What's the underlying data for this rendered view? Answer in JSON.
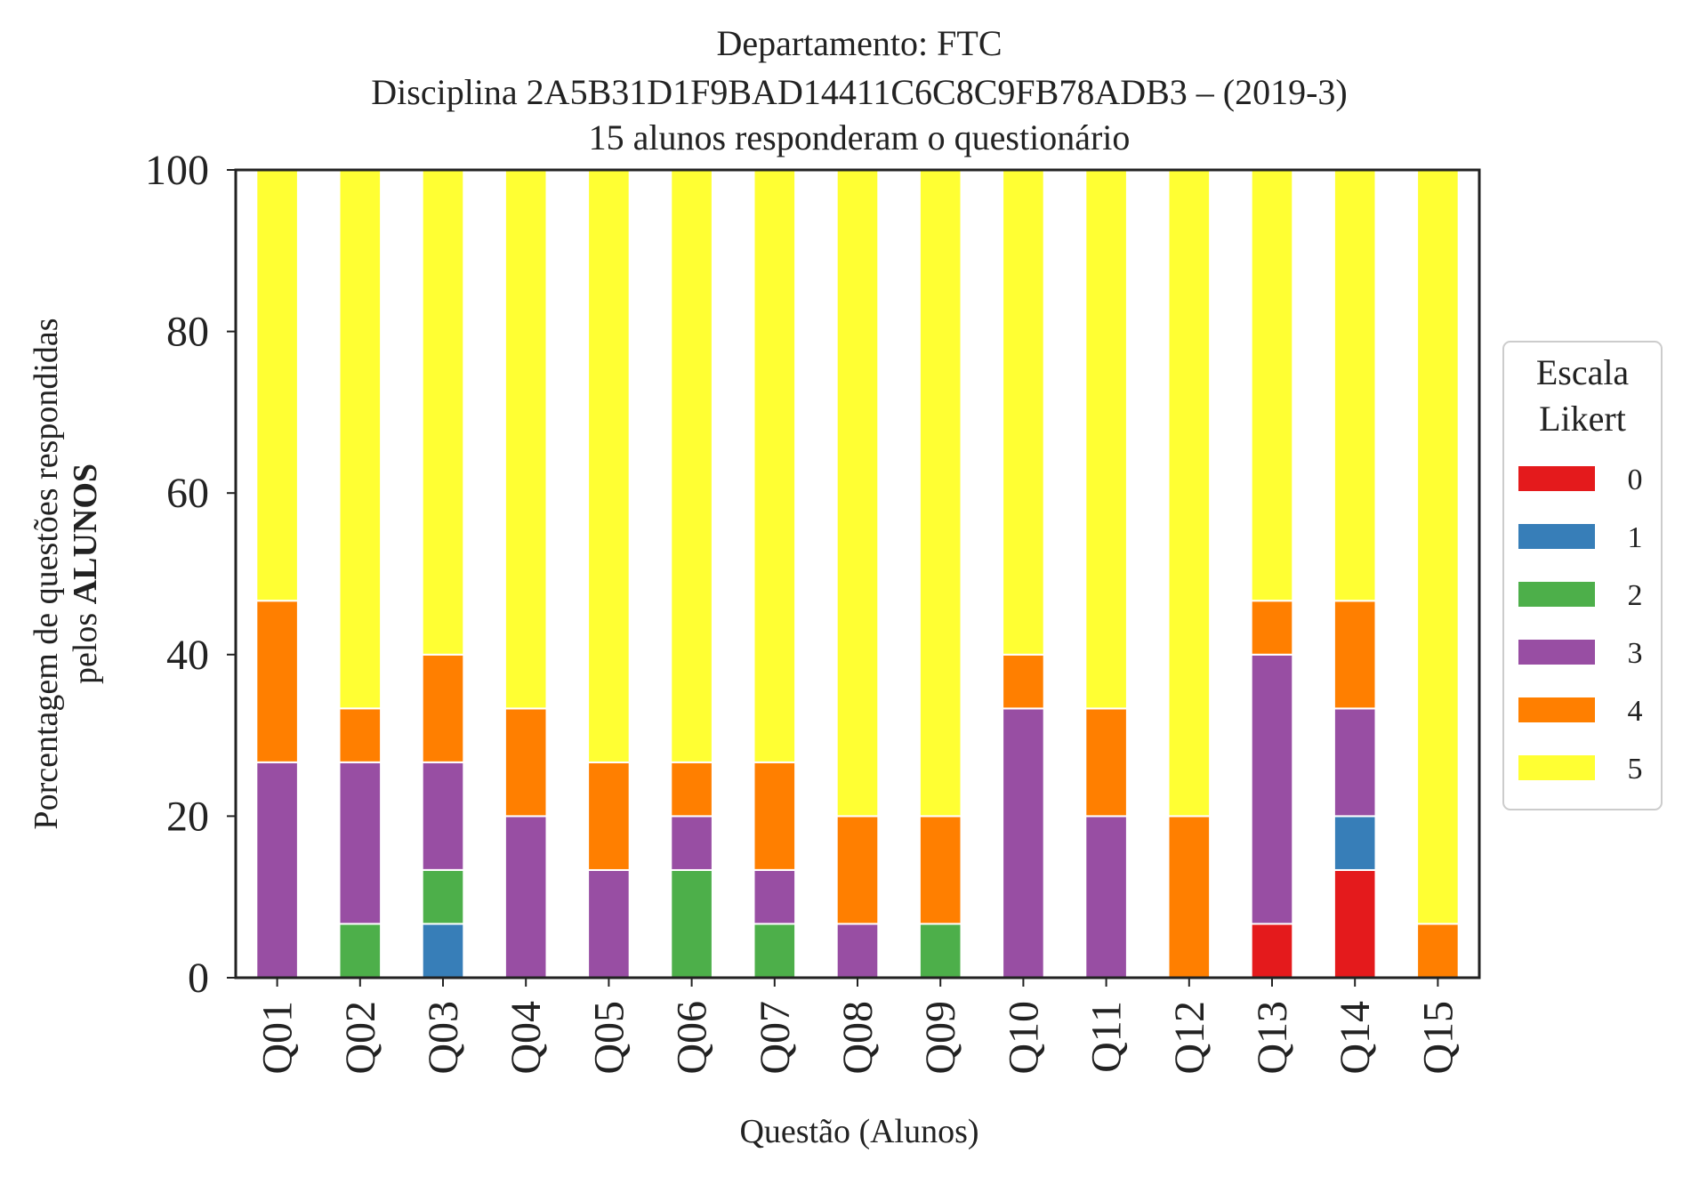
{
  "chart_data": {
    "type": "bar",
    "stacked": true,
    "title": [
      "Departamento: FTC",
      "Disciplina 2A5B31D1F9BAD14411C6C8C9FB78ADB3 – (2019-3)",
      "15 alunos responderam o questionário"
    ],
    "xlabel": "Questão (Alunos)",
    "ylabel_line1": "Porcentagem de questões respondidas",
    "ylabel_line2_prefix": "pelos ",
    "ylabel_line2_bold": "ALUNOS",
    "ylim": [
      0,
      100
    ],
    "yticks": [
      "0",
      "20",
      "40",
      "60",
      "80",
      "100"
    ],
    "categories": [
      "Q01",
      "Q02",
      "Q03",
      "Q04",
      "Q05",
      "Q06",
      "Q07",
      "Q08",
      "Q09",
      "Q10",
      "Q11",
      "Q12",
      "Q13",
      "Q14",
      "Q15"
    ],
    "legend": {
      "title_line1": "Escala",
      "title_line2": "Likert",
      "position": "center-right, outside plot"
    },
    "series": [
      {
        "name": "0",
        "color": "#e41a1c",
        "values": [
          0,
          0,
          0,
          0,
          0,
          0,
          0,
          0,
          0,
          0,
          0,
          0,
          6.67,
          13.33,
          0
        ]
      },
      {
        "name": "1",
        "color": "#377eb8",
        "values": [
          0,
          0,
          6.67,
          0,
          0,
          0,
          0,
          0,
          0,
          0,
          0,
          0,
          0,
          6.67,
          0
        ]
      },
      {
        "name": "2",
        "color": "#4daf4a",
        "values": [
          0,
          6.67,
          6.67,
          0,
          0,
          13.33,
          6.67,
          0,
          6.67,
          0,
          0,
          0,
          0,
          0,
          0
        ]
      },
      {
        "name": "3",
        "color": "#984ea3",
        "values": [
          26.67,
          20,
          13.33,
          20,
          13.33,
          6.67,
          6.67,
          6.67,
          0,
          33.33,
          20,
          0,
          33.33,
          13.33,
          0
        ]
      },
      {
        "name": "4",
        "color": "#ff7f00",
        "values": [
          20,
          6.67,
          13.33,
          13.33,
          13.33,
          6.67,
          13.33,
          13.33,
          13.33,
          6.67,
          13.33,
          20,
          6.67,
          13.33,
          6.67
        ]
      },
      {
        "name": "5",
        "color": "#ffff33",
        "values": [
          53.33,
          66.67,
          60,
          66.67,
          73.33,
          73.33,
          73.33,
          80,
          80,
          60,
          66.67,
          80,
          53.33,
          53.33,
          93.33
        ]
      }
    ],
    "grid": false
  }
}
